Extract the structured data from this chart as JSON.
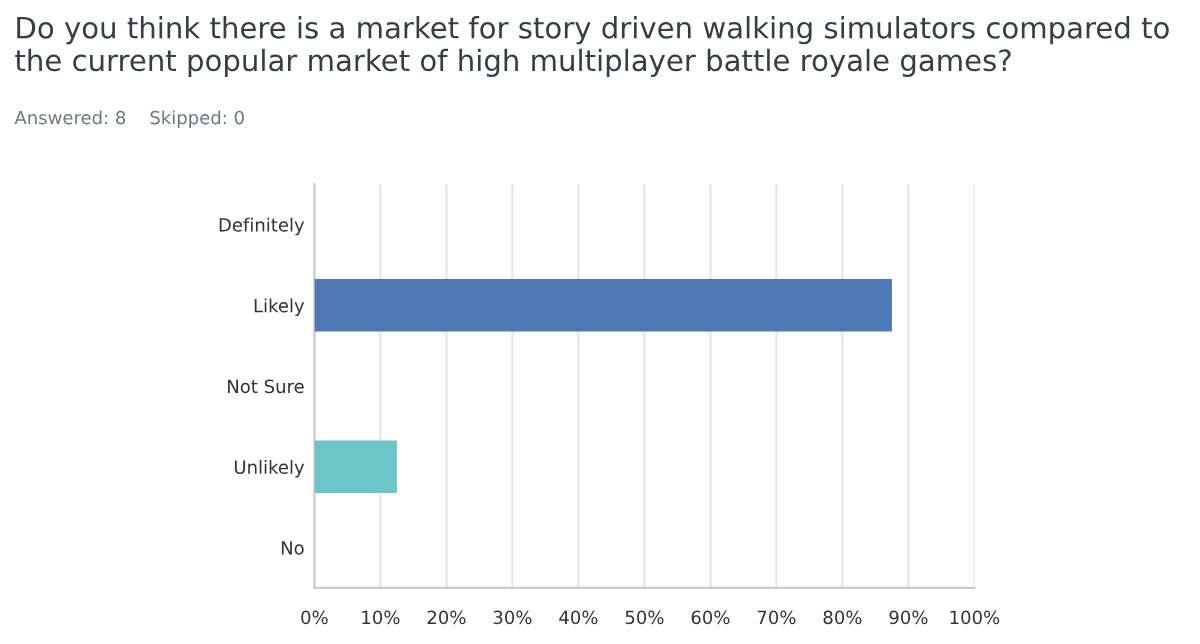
{
  "chart_data": {
    "type": "bar",
    "orientation": "horizontal",
    "title": "Do you think there is a market for story driven walking simulators compared to the current popular market of high multiplayer battle royale games?",
    "subtitle": "Answered: 8    Skipped: 0",
    "categories": [
      "Definitely",
      "Likely",
      "Not Sure",
      "Unlikely",
      "No"
    ],
    "values": [
      0,
      87.5,
      0,
      12.5,
      0
    ],
    "colors": [
      "#6cc5c9",
      "#4e79b4",
      "#6cc5c9",
      "#6cc5c9",
      "#6cc5c9"
    ],
    "xlim": [
      0,
      100
    ],
    "xticks": [
      {
        "value": 0,
        "label": "0%"
      },
      {
        "value": 10,
        "label": "10%"
      },
      {
        "value": 20,
        "label": "20%"
      },
      {
        "value": 30,
        "label": "30%"
      },
      {
        "value": 40,
        "label": "40%"
      },
      {
        "value": 50,
        "label": "50%"
      },
      {
        "value": 60,
        "label": "60%"
      },
      {
        "value": 70,
        "label": "70%"
      },
      {
        "value": 80,
        "label": "80%"
      },
      {
        "value": 90,
        "label": "90%"
      },
      {
        "value": 100,
        "label": "100%"
      }
    ],
    "grid": "x"
  }
}
